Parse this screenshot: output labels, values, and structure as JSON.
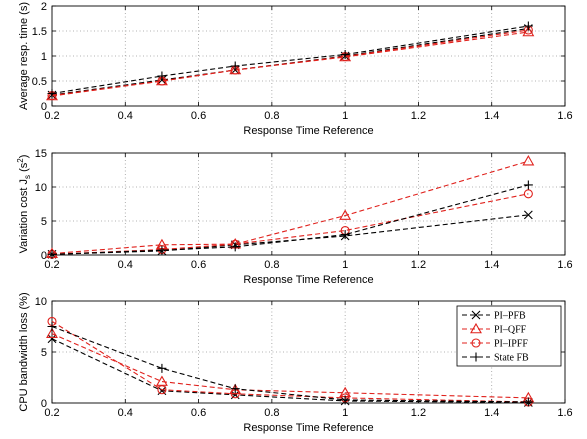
{
  "colors": {
    "PI-PFB": "#000000",
    "PI-QFF": "#e0211c",
    "PI-IPFF": "#e0211c",
    "State FB": "#000000",
    "grid": "#9a9a9a"
  },
  "chart_data": [
    {
      "type": "line",
      "title": "",
      "xlabel": "Response Time Reference",
      "ylabel": "Average resp. time (s)",
      "xlim": [
        0.2,
        1.6
      ],
      "ylim": [
        0,
        2
      ],
      "xticks": [
        0.2,
        0.4,
        0.6,
        0.8,
        1,
        1.2,
        1.4,
        1.6
      ],
      "yticks": [
        0,
        0.5,
        1,
        1.5,
        2
      ],
      "xtick_labels": [
        "0.2",
        "0.4",
        "0.6",
        "0.8",
        "1",
        "1.2",
        "1.4",
        "1.6"
      ],
      "ytick_labels": [
        "0",
        "0.5",
        "1",
        "1.5",
        "2"
      ],
      "grid": true,
      "series": [
        {
          "name": "PI–PFB",
          "marker": "x",
          "color": "#000000",
          "x": [
            0.2,
            0.5,
            0.7,
            1.0,
            1.5
          ],
          "y": [
            0.22,
            0.52,
            0.72,
            1.0,
            1.55
          ]
        },
        {
          "name": "PI–QFF",
          "marker": "triangle",
          "color": "#e0211c",
          "x": [
            0.2,
            0.5,
            0.7,
            1.0,
            1.5
          ],
          "y": [
            0.2,
            0.5,
            0.72,
            0.98,
            1.48
          ]
        },
        {
          "name": "PI–IPFF",
          "marker": "circle",
          "color": "#e0211c",
          "x": [
            0.2,
            0.5,
            0.7,
            1.0,
            1.5
          ],
          "y": [
            0.21,
            0.5,
            0.72,
            0.99,
            1.52
          ]
        },
        {
          "name": "State FB",
          "marker": "plus",
          "color": "#000000",
          "x": [
            0.2,
            0.5,
            0.7,
            1.0,
            1.5
          ],
          "y": [
            0.25,
            0.6,
            0.8,
            1.03,
            1.6
          ]
        }
      ]
    },
    {
      "type": "line",
      "title": "",
      "xlabel": "Response Time Reference",
      "ylabel": "Variation cost J_s (s^2)",
      "ylabel_parts": {
        "main": "Variation cost J",
        "sub": "s",
        "unit": " (s",
        "sup": "2",
        "close": ")"
      },
      "xlim": [
        0.2,
        1.6
      ],
      "ylim": [
        0,
        15
      ],
      "xticks": [
        0.2,
        0.4,
        0.6,
        0.8,
        1,
        1.2,
        1.4,
        1.6
      ],
      "yticks": [
        0,
        5,
        10,
        15
      ],
      "xtick_labels": [
        "0.2",
        "0.4",
        "0.6",
        "0.8",
        "1",
        "1.2",
        "1.4",
        "1.6"
      ],
      "ytick_labels": [
        "0",
        "5",
        "10",
        "15"
      ],
      "grid": true,
      "series": [
        {
          "name": "PI–PFB",
          "marker": "x",
          "color": "#000000",
          "x": [
            0.2,
            0.5,
            0.7,
            1.0,
            1.5
          ],
          "y": [
            0.1,
            0.6,
            1.5,
            2.8,
            5.9
          ]
        },
        {
          "name": "PI–QFF",
          "marker": "triangle",
          "color": "#e0211c",
          "x": [
            0.2,
            0.5,
            0.7,
            1.0,
            1.5
          ],
          "y": [
            0.2,
            1.5,
            1.6,
            5.8,
            13.8
          ]
        },
        {
          "name": "PI–IPFF",
          "marker": "circle",
          "color": "#e0211c",
          "x": [
            0.2,
            0.5,
            0.7,
            1.0,
            1.5
          ],
          "y": [
            0.1,
            0.8,
            1.6,
            3.6,
            9.0
          ]
        },
        {
          "name": "State FB",
          "marker": "plus",
          "color": "#000000",
          "x": [
            0.2,
            0.5,
            0.7,
            1.0,
            1.5
          ],
          "y": [
            0.1,
            0.7,
            1.2,
            3.0,
            10.3
          ]
        }
      ]
    },
    {
      "type": "line",
      "title": "",
      "xlabel": "Response Time Reference",
      "ylabel": "CPU bandwidth loss (%)",
      "xlim": [
        0.2,
        1.6
      ],
      "ylim": [
        0,
        10
      ],
      "xticks": [
        0.2,
        0.4,
        0.6,
        0.8,
        1,
        1.2,
        1.4,
        1.6
      ],
      "yticks": [
        0,
        5,
        10
      ],
      "xtick_labels": [
        "0.2",
        "0.4",
        "0.6",
        "0.8",
        "1",
        "1.2",
        "1.4",
        "1.6"
      ],
      "ytick_labels": [
        "0",
        "5",
        "10"
      ],
      "grid": true,
      "legend": "top-right",
      "series": [
        {
          "name": "PI–PFB",
          "marker": "x",
          "color": "#000000",
          "x": [
            0.2,
            0.5,
            0.7,
            1.0,
            1.5
          ],
          "y": [
            6.3,
            1.2,
            0.8,
            0.2,
            0.05
          ]
        },
        {
          "name": "PI–QFF",
          "marker": "triangle",
          "color": "#e0211c",
          "x": [
            0.2,
            0.5,
            0.7,
            1.0,
            1.5
          ],
          "y": [
            6.8,
            2.1,
            1.3,
            1.0,
            0.5
          ]
        },
        {
          "name": "PI–IPFF",
          "marker": "circle",
          "color": "#e0211c",
          "x": [
            0.2,
            0.5,
            0.7,
            1.0,
            1.5
          ],
          "y": [
            8.0,
            1.3,
            0.9,
            0.5,
            0.1
          ]
        },
        {
          "name": "State FB",
          "marker": "plus",
          "color": "#000000",
          "x": [
            0.2,
            0.5,
            0.7,
            1.0,
            1.5
          ],
          "y": [
            7.5,
            3.4,
            1.4,
            0.3,
            0.1
          ]
        }
      ]
    }
  ]
}
